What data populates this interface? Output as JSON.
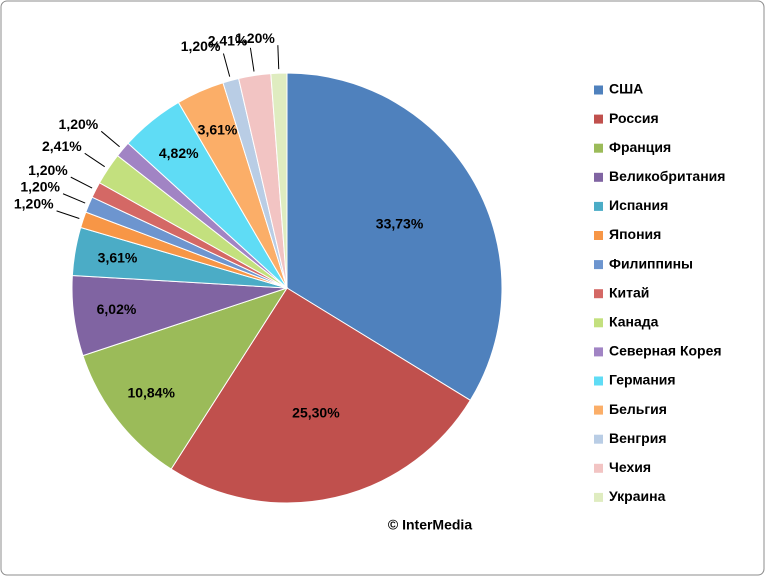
{
  "chart_data": {
    "type": "pie",
    "annotation": "© InterMedia",
    "categories": [
      "США",
      "Россия",
      "Франция",
      "Великобритания",
      "Испания",
      "Япония",
      "Филиппины",
      "Китай",
      "Канада",
      "Северная Корея",
      "Германия",
      "Бельгия",
      "Венгрия",
      "Чехия",
      "Украина"
    ],
    "values": [
      33.73,
      25.3,
      10.84,
      6.02,
      3.61,
      1.2,
      1.2,
      1.2,
      2.41,
      1.2,
      4.82,
      3.61,
      1.2,
      2.41,
      1.2
    ],
    "value_labels": [
      "33,73%",
      "25,30%",
      "10,84%",
      "6,02%",
      "3,61%",
      "1,20%",
      "1,20%",
      "1,20%",
      "2,41%",
      "1,20%",
      "4,82%",
      "3,61%",
      "1,20%",
      "2,41%",
      "1,20%"
    ],
    "colors": [
      "#4f81bd",
      "#c0504d",
      "#9bbb59",
      "#8064a2",
      "#4bacc6",
      "#f79646",
      "#6d95cf",
      "#d46865",
      "#c3e07e",
      "#a184c4",
      "#5fdcf5",
      "#fbae68",
      "#b9cde5",
      "#f2c4c3",
      "#dfecc0"
    ],
    "legend": "right"
  }
}
